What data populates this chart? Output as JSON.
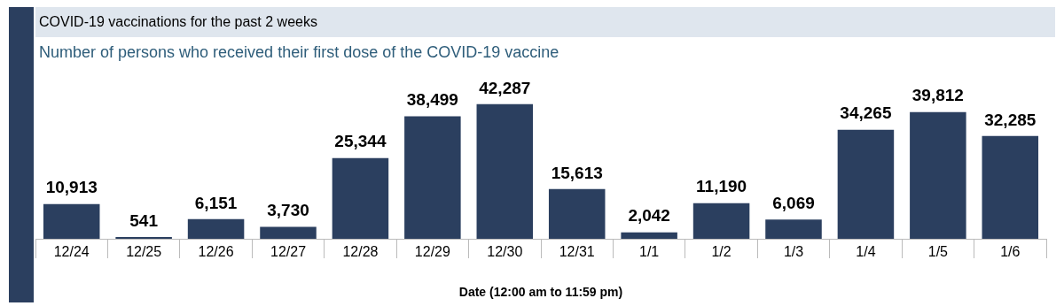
{
  "chart_data": {
    "type": "bar",
    "title": "COVID-19 vaccinations for the past 2 weeks",
    "subtitle": "Number of persons who received their first dose of the COVID-19 vaccine",
    "xlabel": "Date (12:00 am to 11:59 pm)",
    "categories": [
      "12/24",
      "12/25",
      "12/26",
      "12/27",
      "12/28",
      "12/29",
      "12/30",
      "12/31",
      "1/1",
      "1/2",
      "1/3",
      "1/4",
      "1/5",
      "1/6"
    ],
    "values": [
      10913,
      541,
      6151,
      3730,
      25344,
      38499,
      42287,
      15613,
      2042,
      11190,
      6069,
      34265,
      39812,
      32285
    ],
    "value_labels": [
      "10,913",
      "541",
      "6,151",
      "3,730",
      "25,344",
      "38,499",
      "42,287",
      "15,613",
      "2,042",
      "11,190",
      "6,069",
      "34,265",
      "39,812",
      "32,285"
    ],
    "color": "#2b3f5f",
    "grid": false
  }
}
